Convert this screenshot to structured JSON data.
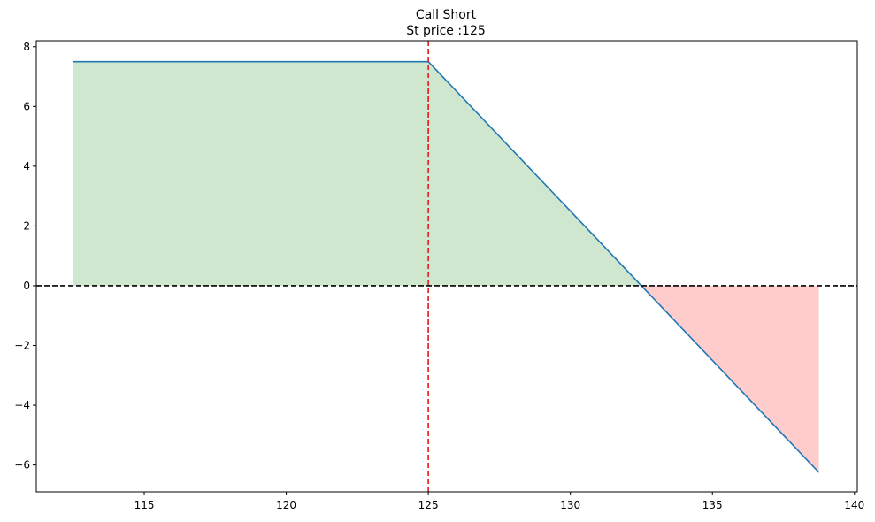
{
  "chart_data": {
    "type": "area",
    "title": "Call Short",
    "subtitle": "St price :125",
    "xlabel": "",
    "ylabel": "",
    "xlim": [
      111.2,
      140.1
    ],
    "ylim": [
      -6.9,
      8.2
    ],
    "xticks": [
      115,
      120,
      125,
      130,
      135,
      140
    ],
    "yticks": [
      -6,
      -4,
      -2,
      0,
      2,
      4,
      6,
      8
    ],
    "series": [
      {
        "x": [
          112.5,
          125,
          132.5,
          138.75
        ],
        "y": [
          7.5,
          7.5,
          0,
          -6.25
        ]
      }
    ],
    "strike_line": 125,
    "zero_line": 0,
    "grid": false,
    "legend": "none",
    "colors": {
      "line": "#1f77b4",
      "profit_fill": "#cfe6cf",
      "loss_fill": "#ffcccc",
      "strike": "#e31a1c",
      "zero": "#000000"
    }
  }
}
